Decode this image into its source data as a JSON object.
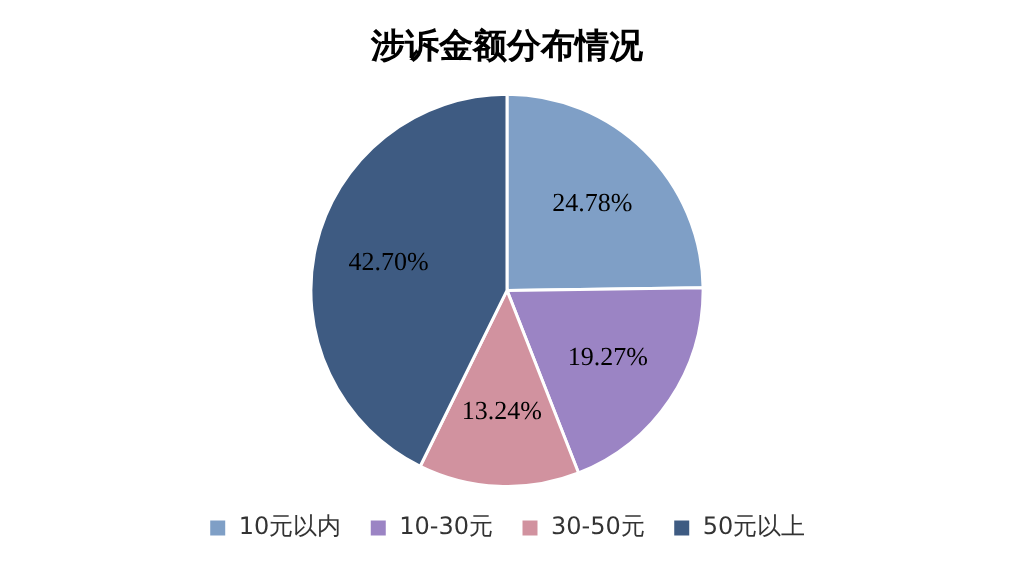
{
  "chart_data": {
    "type": "pie",
    "title": "涉诉金额分布情况",
    "categories": [
      "10元以内",
      "10-30元",
      "30-50元",
      "50元以上"
    ],
    "values": [
      24.78,
      19.27,
      13.24,
      42.7
    ],
    "colors": [
      "#7f9fc6",
      "#9b84c4",
      "#d1929f",
      "#3e5b82"
    ],
    "value_labels": [
      "24.78%",
      "19.27%",
      "13.24%",
      "42.70%"
    ],
    "legend": "bottom"
  }
}
